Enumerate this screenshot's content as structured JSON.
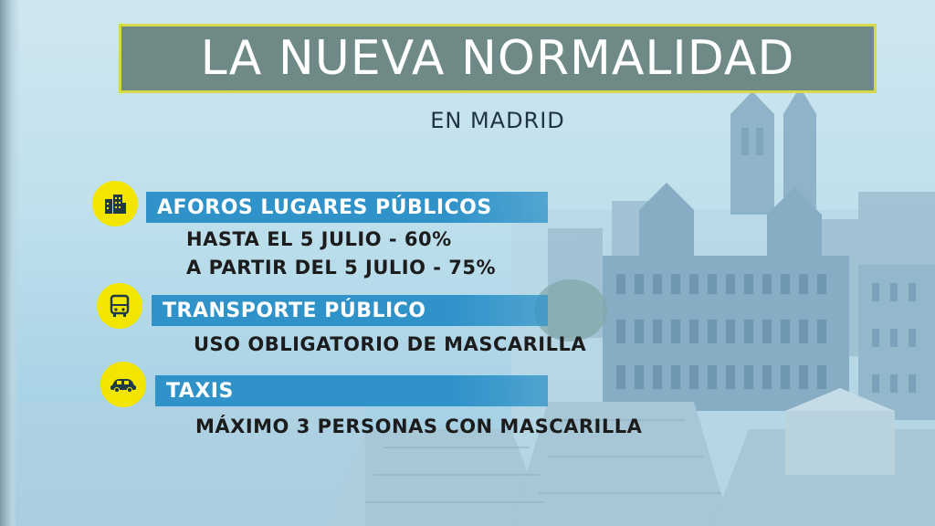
{
  "title": "LA NUEVA NORMALIDAD",
  "subtitle": "EN MADRID",
  "sections": [
    {
      "icon": "building-icon",
      "heading": "AFOROS LUGARES PÚBLICOS",
      "lines": [
        "HASTA EL 5 JULIO - 60%",
        "A PARTIR DEL 5 JULIO - 75%"
      ]
    },
    {
      "icon": "bus-icon",
      "heading": "TRANSPORTE PÚBLICO",
      "lines": [
        "USO OBLIGATORIO DE MASCARILLA"
      ]
    },
    {
      "icon": "car-icon",
      "heading": "TAXIS",
      "lines": [
        "MÁXIMO 3 PERSONAS CON MASCARILLA"
      ]
    }
  ],
  "colors": {
    "banner": "#6f8a86",
    "banner_border": "#d6d94a",
    "section_bar": "#2f92c9",
    "icon_circle": "#f2e600"
  }
}
